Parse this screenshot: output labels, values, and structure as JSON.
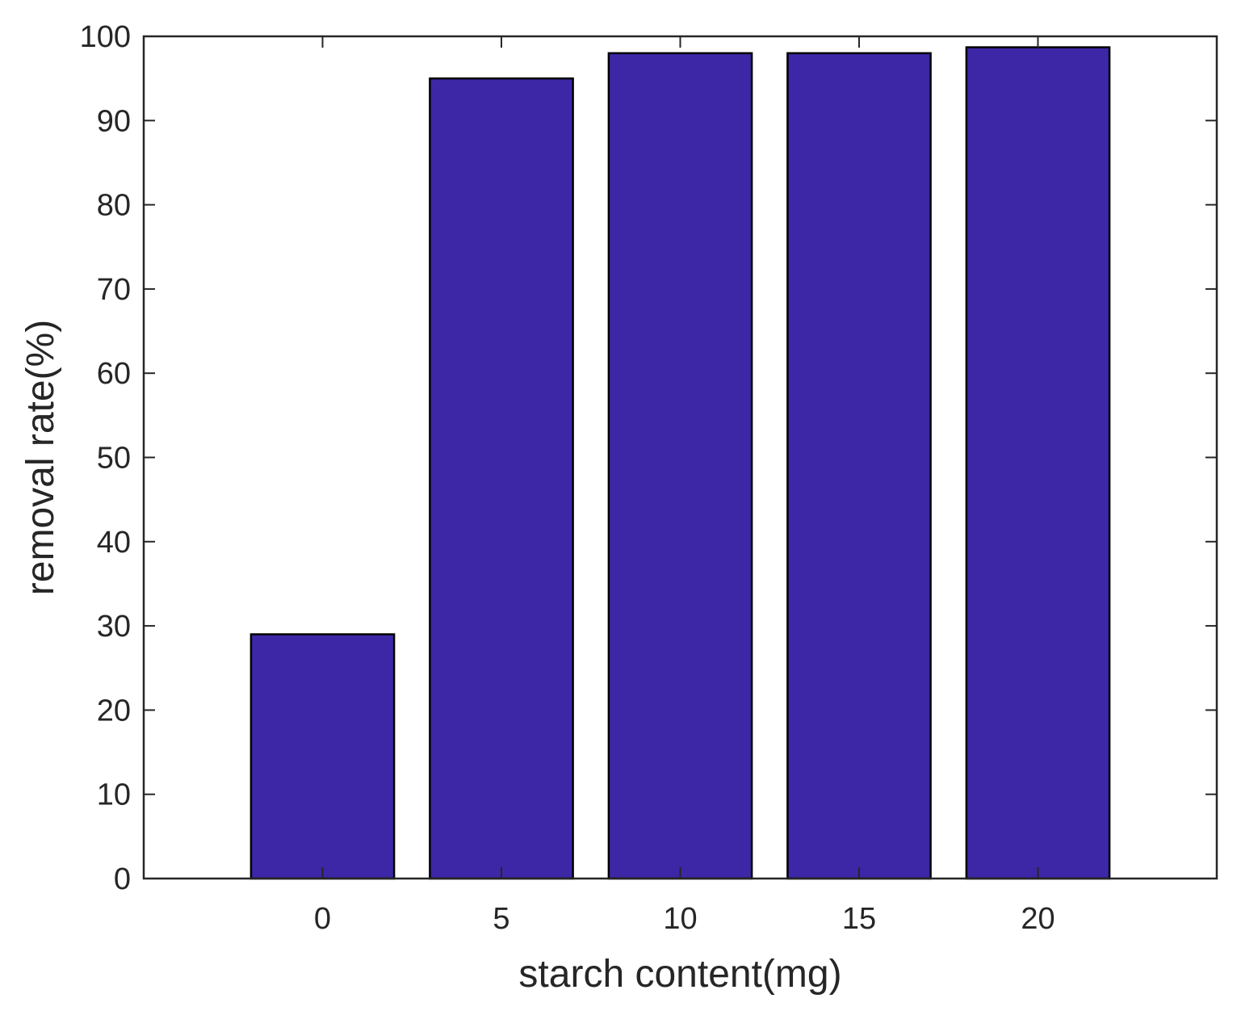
{
  "chart_data": {
    "type": "bar",
    "title": "",
    "xlabel": "starch content(mg)",
    "ylabel": "removal rate(%)",
    "categories": [
      "0",
      "5",
      "10",
      "15",
      "20"
    ],
    "x": [
      0,
      5,
      10,
      15,
      20
    ],
    "values": [
      29,
      95,
      98,
      98,
      98.7
    ],
    "xlim": [
      -5,
      25
    ],
    "ylim": [
      0,
      100
    ],
    "yticks": [
      0,
      10,
      20,
      30,
      40,
      50,
      60,
      70,
      80,
      90,
      100
    ],
    "xticks": [
      0,
      5,
      10,
      15,
      20
    ],
    "bar_width": 4,
    "grid": false,
    "legend": "none",
    "colors": {
      "bar_fill": "#3d27a6",
      "bar_edge": "#000000",
      "axis": "#262626",
      "background": "#ffffff"
    }
  }
}
